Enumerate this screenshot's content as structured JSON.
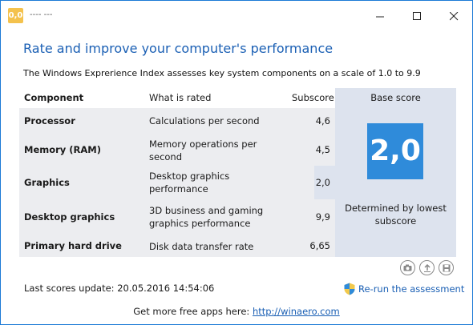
{
  "window": {
    "icon_text": "0,0",
    "title": "---- ---"
  },
  "heading": "Rate and improve your computer's performance",
  "subheading": "The Windows Exprerience Index assesses key system components on a scale of 1.0 to 9.9",
  "table": {
    "headers": {
      "component": "Component",
      "what": "What is rated",
      "subscore": "Subscore",
      "base": "Base score"
    },
    "rows": [
      {
        "component": "Processor",
        "what": "Calculations per second",
        "subscore": "4,6"
      },
      {
        "component": "Memory (RAM)",
        "what": "Memory operations per second",
        "subscore": "4,5"
      },
      {
        "component": "Graphics",
        "what": "Desktop graphics performance",
        "subscore": "2,0"
      },
      {
        "component": "Desktop graphics",
        "what": "3D business and gaming graphics performance",
        "subscore": "9,9"
      },
      {
        "component": "Primary hard drive",
        "what": "Disk data transfer rate",
        "subscore": "6,65"
      }
    ]
  },
  "base_score": {
    "value": "2,0",
    "caption": "Determined by lowest subscore"
  },
  "actions": {
    "icons": [
      "camera-icon",
      "upload-icon",
      "save-icon"
    ]
  },
  "footer": {
    "last_update": "Last scores update: 20.05.2016 14:54:06",
    "rerun_label": "Re-run the assessment",
    "promo_text": "Get more free apps here: ",
    "promo_link": "http://winaero.com"
  },
  "colors": {
    "accent": "#1a5fb4",
    "tile": "#2f8bda",
    "table_bg": "#ecedf0",
    "base_bg": "#dde3ee"
  }
}
